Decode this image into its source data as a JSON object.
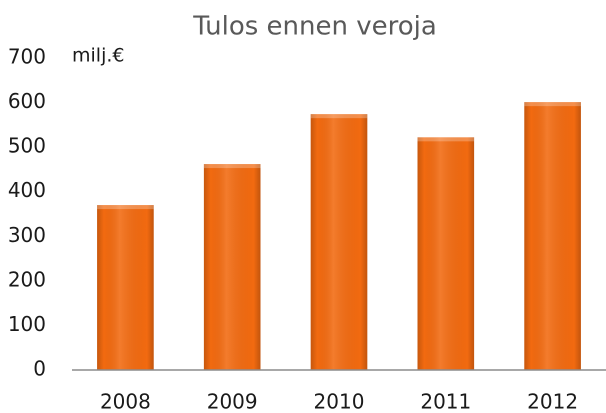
{
  "chart_data": {
    "type": "bar",
    "title": "Tulos ennen veroja",
    "y_label": "milj.€",
    "categories": [
      "2008",
      "2009",
      "2010",
      "2011",
      "2012"
    ],
    "values": [
      370,
      462,
      574,
      522,
      601
    ],
    "color": "#f26a10",
    "ylim": [
      0,
      700
    ],
    "yticks": [
      0,
      100,
      200,
      300,
      400,
      500,
      600,
      700
    ],
    "grid": false
  }
}
